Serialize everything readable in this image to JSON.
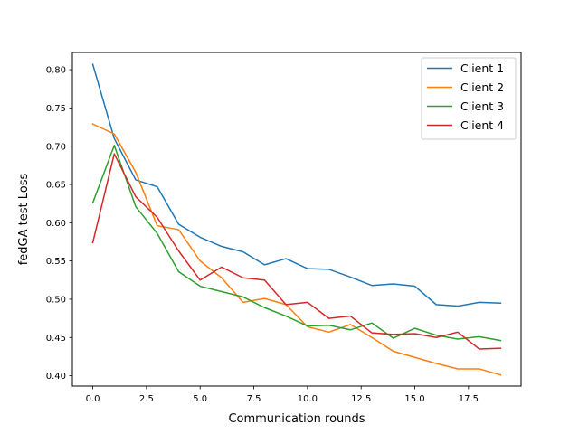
{
  "chart_data": {
    "type": "line",
    "title": "",
    "xlabel": "Communication rounds",
    "ylabel": "fedGA test Loss",
    "xlim": [
      -0.95,
      19.95
    ],
    "ylim": [
      0.3865,
      0.8225
    ],
    "xticks": [
      0.0,
      2.5,
      5.0,
      7.5,
      10.0,
      12.5,
      15.0,
      17.5
    ],
    "xtick_labels": [
      "0.0",
      "2.5",
      "5.0",
      "7.5",
      "10.0",
      "12.5",
      "15.0",
      "17.5"
    ],
    "yticks": [
      0.4,
      0.45,
      0.5,
      0.55,
      0.6,
      0.65,
      0.7,
      0.75,
      0.8
    ],
    "ytick_labels": [
      "0.40",
      "0.45",
      "0.50",
      "0.55",
      "0.60",
      "0.65",
      "0.70",
      "0.75",
      "0.80"
    ],
    "grid": false,
    "legend_position": "top-right",
    "x": [
      0,
      1,
      2,
      3,
      4,
      5,
      6,
      7,
      8,
      9,
      10,
      11,
      12,
      13,
      14,
      15,
      16,
      17,
      18,
      19
    ],
    "series": [
      {
        "name": "Client 1",
        "color": "#1f77b4",
        "values": [
          0.807,
          0.71,
          0.656,
          0.647,
          0.598,
          0.581,
          0.569,
          0.562,
          0.545,
          0.553,
          0.54,
          0.539,
          0.529,
          0.518,
          0.52,
          0.517,
          0.493,
          0.491,
          0.496,
          0.495
        ]
      },
      {
        "name": "Client 2",
        "color": "#ff7f0e",
        "values": [
          0.729,
          0.716,
          0.666,
          0.596,
          0.591,
          0.55,
          0.528,
          0.496,
          0.501,
          0.493,
          0.464,
          0.457,
          0.467,
          0.45,
          0.432,
          0.424,
          0.416,
          0.409,
          0.409,
          0.401
        ]
      },
      {
        "name": "Client 3",
        "color": "#2ca02c",
        "values": [
          0.626,
          0.701,
          0.621,
          0.586,
          0.536,
          0.517,
          0.51,
          0.503,
          0.489,
          0.478,
          0.465,
          0.466,
          0.46,
          0.469,
          0.449,
          0.462,
          0.453,
          0.448,
          0.451,
          0.446
        ]
      },
      {
        "name": "Client 4",
        "color": "#d62728",
        "values": [
          0.574,
          0.69,
          0.634,
          0.607,
          0.563,
          0.525,
          0.542,
          0.528,
          0.525,
          0.493,
          0.496,
          0.475,
          0.478,
          0.456,
          0.454,
          0.455,
          0.45,
          0.457,
          0.435,
          0.436
        ]
      }
    ]
  }
}
